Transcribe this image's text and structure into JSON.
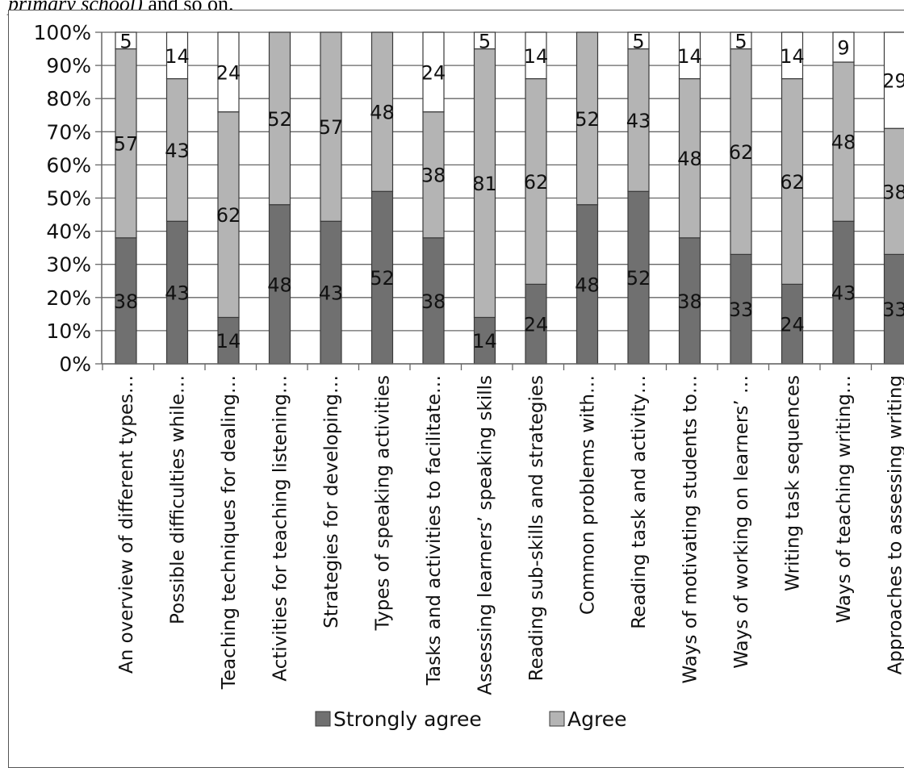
{
  "caption": {
    "italic": "primary school)",
    "rest": " and so on."
  },
  "colors": {
    "strongly_agree": "#707070",
    "agree": "#b4b4b4",
    "grid": "#666666",
    "bar_stroke": "#3a3a3a"
  },
  "chart_data": {
    "type": "bar",
    "stacked": true,
    "percent_stacked": true,
    "title": "",
    "xlabel": "",
    "ylabel": "",
    "ylim": [
      0,
      100
    ],
    "y_ticks": [
      "0%",
      "10%",
      "20%",
      "30%",
      "40%",
      "50%",
      "60%",
      "70%",
      "80%",
      "90%",
      "100%"
    ],
    "grid": true,
    "legend_position": "bottom",
    "categories": [
      "An overview of different types…",
      "Possible difficulties while…",
      "Teaching techniques for dealing…",
      "Activities for teaching listening…",
      "Strategies for developing…",
      "Types of speaking activities",
      "Tasks and activities to facilitate…",
      "Assessing learners’ speaking skills",
      "Reading sub-skills and strategies",
      "Common problems with…",
      "Reading task and activity…",
      "Ways of motivating students to…",
      "Ways of working on learners’ …",
      "Writing task sequences",
      "Ways of teaching writing…",
      "Approaches to assessing writing"
    ],
    "series": [
      {
        "name": "Strongly agree",
        "values": [
          38,
          43,
          14,
          48,
          43,
          52,
          38,
          14,
          24,
          48,
          52,
          38,
          33,
          24,
          43,
          33
        ]
      },
      {
        "name": "Agree",
        "values": [
          57,
          43,
          62,
          52,
          57,
          48,
          38,
          81,
          62,
          52,
          43,
          48,
          62,
          62,
          48,
          38
        ]
      },
      {
        "name": "",
        "values": [
          5,
          14,
          24,
          null,
          null,
          null,
          24,
          5,
          14,
          null,
          5,
          14,
          5,
          14,
          9,
          29
        ]
      }
    ]
  }
}
